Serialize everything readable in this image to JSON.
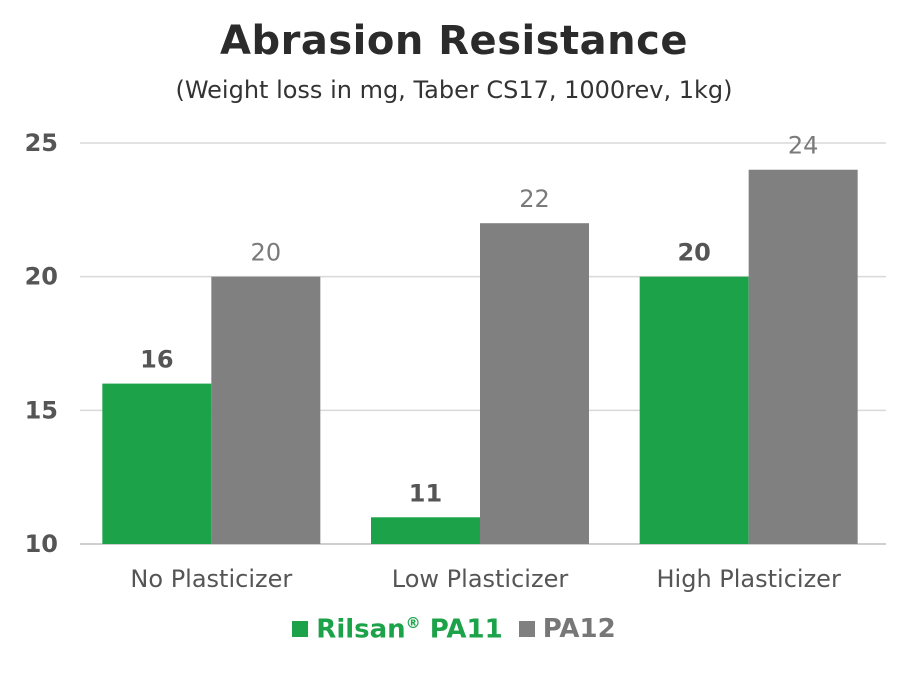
{
  "chart_data": {
    "type": "bar",
    "title": "Abrasion Resistance",
    "subtitle": "(Weight loss in mg, Taber CS17, 1000rev, 1kg)",
    "xlabel": "",
    "ylabel": "",
    "categories": [
      "No Plasticizer",
      "Low Plasticizer",
      "High Plasticizer"
    ],
    "series": [
      {
        "name": "Rilsan® PA11",
        "name_main": "Rilsan",
        "name_sup": "®",
        "name_tail": " PA11",
        "values": [
          16,
          11,
          20
        ],
        "color": "#1ca34a"
      },
      {
        "name": "PA12",
        "values": [
          20,
          22,
          24
        ],
        "color": "#808080"
      }
    ],
    "ylim": [
      10,
      25
    ],
    "yticks": [
      10,
      15,
      20,
      25
    ],
    "grid": true,
    "legend": "bottom-center",
    "data_labels": true
  }
}
